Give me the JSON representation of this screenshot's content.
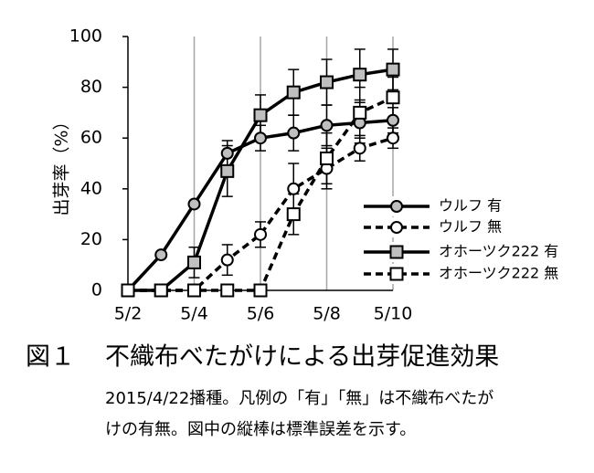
{
  "chart_data": {
    "type": "line",
    "y_label": "出芽率（%）",
    "categories": [
      "5/2",
      null,
      "5/4",
      null,
      "5/6",
      null,
      "5/8",
      null,
      "5/10"
    ],
    "ylim": [
      0,
      100
    ],
    "yticks": [
      0,
      20,
      40,
      60,
      80,
      100
    ],
    "grid": "x",
    "legend": "lower-right",
    "series": [
      {
        "name": "ウルフ 有",
        "color": "#bfbfbf",
        "marker": "circle",
        "dashed": false,
        "values": [
          0,
          14,
          34,
          54,
          60,
          62,
          65,
          66,
          67
        ],
        "errors": [
          0,
          1,
          1,
          5,
          5,
          7,
          8,
          8,
          5
        ]
      },
      {
        "name": "ウルフ 無",
        "color": "#ffffff",
        "marker": "circle",
        "dashed": true,
        "values": [
          0,
          0,
          0,
          12,
          22,
          40,
          48,
          56,
          60
        ],
        "errors": [
          0,
          0,
          0,
          6,
          5,
          10,
          8,
          5,
          4
        ]
      },
      {
        "name": "オホーツク222 有",
        "color": "#bfbfbf",
        "marker": "square",
        "dashed": false,
        "values": [
          0,
          0,
          11,
          47,
          69,
          78,
          82,
          85,
          87
        ],
        "errors": [
          0,
          0,
          6,
          10,
          8,
          9,
          9,
          10,
          8
        ]
      },
      {
        "name": "オホーツク222 無",
        "color": "#ffffff",
        "marker": "square",
        "dashed": true,
        "values": [
          0,
          0,
          0,
          0,
          0,
          30,
          52,
          70,
          76
        ],
        "errors": [
          0,
          0,
          0,
          0,
          0,
          8,
          10,
          10,
          8
        ]
      }
    ],
    "figure_label": "図１",
    "caption": "不織布べたがけによる出芽促進効果",
    "notes": [
      "2015/4/22播種。凡例の「有」「無」は不織布べたが",
      "けの有無。図中の縦棒は標準誤差を示す。"
    ]
  }
}
